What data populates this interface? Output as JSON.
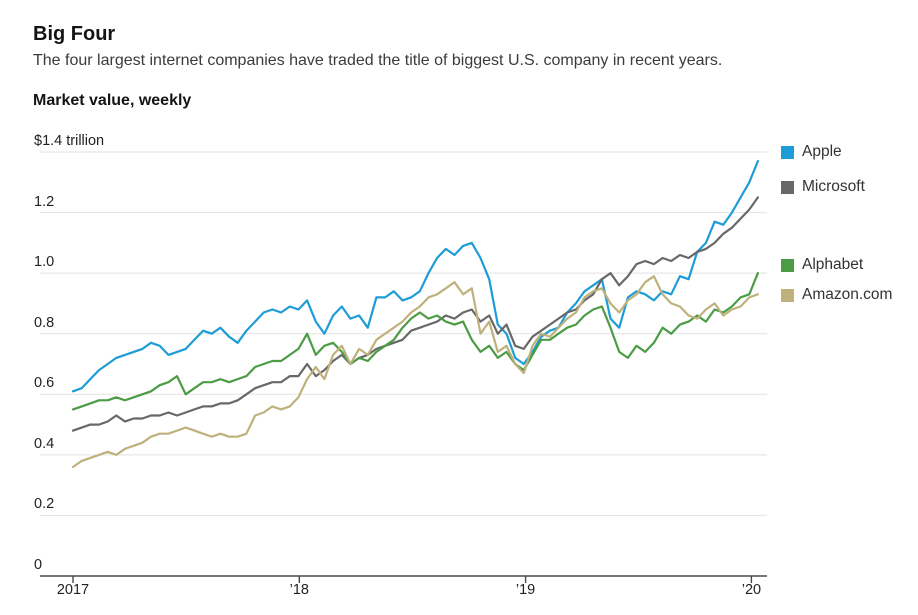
{
  "header": {
    "title": "Big Four",
    "subtitle": "The four largest internet companies have traded the title of biggest U.S. company in recent years."
  },
  "chart_data": {
    "type": "line",
    "title": "Market value, weekly",
    "unit": "trillion USD",
    "grid": true,
    "legend_position": "right",
    "ylim": [
      0,
      1.4
    ],
    "x_start": "2017",
    "x_end": "early 2020",
    "x_step_weeks": 2,
    "x_ticks": [
      {
        "week": 0,
        "label": "2017"
      },
      {
        "week": 52.2,
        "label": "’18"
      },
      {
        "week": 104.4,
        "label": "’19"
      },
      {
        "week": 156.5,
        "label": "’20"
      }
    ],
    "y_ticks": [
      {
        "value": 0,
        "label": "0"
      },
      {
        "value": 0.2,
        "label": "0.2"
      },
      {
        "value": 0.4,
        "label": "0.4"
      },
      {
        "value": 0.6,
        "label": "0.6"
      },
      {
        "value": 0.8,
        "label": "0.8"
      },
      {
        "value": 1.0,
        "label": "1.0"
      },
      {
        "value": 1.2,
        "label": "1.2"
      },
      {
        "value": 1.4,
        "label": "$1.4 trillion"
      }
    ],
    "series": [
      {
        "name": "Apple",
        "color": "#1e9cd7",
        "values": [
          0.61,
          0.62,
          0.65,
          0.68,
          0.7,
          0.72,
          0.73,
          0.74,
          0.75,
          0.77,
          0.76,
          0.73,
          0.74,
          0.75,
          0.78,
          0.81,
          0.8,
          0.82,
          0.79,
          0.77,
          0.81,
          0.84,
          0.87,
          0.88,
          0.87,
          0.89,
          0.88,
          0.91,
          0.84,
          0.8,
          0.86,
          0.89,
          0.85,
          0.86,
          0.82,
          0.92,
          0.92,
          0.94,
          0.91,
          0.92,
          0.94,
          1.0,
          1.05,
          1.08,
          1.06,
          1.09,
          1.1,
          1.05,
          0.98,
          0.83,
          0.8,
          0.72,
          0.7,
          0.74,
          0.79,
          0.81,
          0.82,
          0.87,
          0.9,
          0.94,
          0.96,
          0.98,
          0.85,
          0.82,
          0.92,
          0.94,
          0.93,
          0.91,
          0.94,
          0.93,
          0.99,
          0.98,
          1.07,
          1.1,
          1.17,
          1.16,
          1.2,
          1.25,
          1.3,
          1.37
        ]
      },
      {
        "name": "Microsoft",
        "color": "#686868",
        "values": [
          0.48,
          0.49,
          0.5,
          0.5,
          0.51,
          0.53,
          0.51,
          0.52,
          0.52,
          0.53,
          0.53,
          0.54,
          0.53,
          0.54,
          0.55,
          0.56,
          0.56,
          0.57,
          0.57,
          0.58,
          0.6,
          0.62,
          0.63,
          0.64,
          0.64,
          0.66,
          0.66,
          0.7,
          0.66,
          0.68,
          0.71,
          0.73,
          0.7,
          0.72,
          0.73,
          0.75,
          0.76,
          0.77,
          0.78,
          0.81,
          0.82,
          0.83,
          0.84,
          0.86,
          0.85,
          0.87,
          0.88,
          0.84,
          0.86,
          0.8,
          0.83,
          0.76,
          0.75,
          0.79,
          0.81,
          0.83,
          0.85,
          0.87,
          0.88,
          0.91,
          0.93,
          0.98,
          1.0,
          0.96,
          0.99,
          1.03,
          1.04,
          1.03,
          1.05,
          1.04,
          1.06,
          1.05,
          1.07,
          1.08,
          1.1,
          1.13,
          1.15,
          1.18,
          1.21,
          1.25
        ]
      },
      {
        "name": "Alphabet",
        "color": "#4b9c45",
        "values": [
          0.55,
          0.56,
          0.57,
          0.58,
          0.58,
          0.59,
          0.58,
          0.59,
          0.6,
          0.61,
          0.63,
          0.64,
          0.66,
          0.6,
          0.62,
          0.64,
          0.64,
          0.65,
          0.64,
          0.65,
          0.66,
          0.69,
          0.7,
          0.71,
          0.71,
          0.73,
          0.75,
          0.8,
          0.73,
          0.76,
          0.77,
          0.74,
          0.7,
          0.72,
          0.71,
          0.74,
          0.76,
          0.78,
          0.82,
          0.85,
          0.87,
          0.85,
          0.86,
          0.84,
          0.83,
          0.84,
          0.78,
          0.74,
          0.76,
          0.72,
          0.74,
          0.7,
          0.68,
          0.73,
          0.78,
          0.78,
          0.8,
          0.82,
          0.83,
          0.86,
          0.88,
          0.89,
          0.82,
          0.74,
          0.72,
          0.76,
          0.74,
          0.77,
          0.82,
          0.8,
          0.83,
          0.84,
          0.86,
          0.84,
          0.88,
          0.87,
          0.89,
          0.92,
          0.93,
          1.0
        ]
      },
      {
        "name": "Amazon.com",
        "color": "#bfb17c",
        "values": [
          0.36,
          0.38,
          0.39,
          0.4,
          0.41,
          0.4,
          0.42,
          0.43,
          0.44,
          0.46,
          0.47,
          0.47,
          0.48,
          0.49,
          0.48,
          0.47,
          0.46,
          0.47,
          0.46,
          0.46,
          0.47,
          0.53,
          0.54,
          0.56,
          0.55,
          0.56,
          0.59,
          0.65,
          0.69,
          0.65,
          0.73,
          0.76,
          0.7,
          0.75,
          0.73,
          0.78,
          0.8,
          0.82,
          0.84,
          0.87,
          0.89,
          0.92,
          0.93,
          0.95,
          0.97,
          0.93,
          0.95,
          0.8,
          0.84,
          0.74,
          0.76,
          0.7,
          0.67,
          0.76,
          0.8,
          0.79,
          0.82,
          0.85,
          0.87,
          0.92,
          0.94,
          0.95,
          0.9,
          0.87,
          0.91,
          0.93,
          0.97,
          0.99,
          0.93,
          0.9,
          0.89,
          0.86,
          0.85,
          0.88,
          0.9,
          0.86,
          0.88,
          0.89,
          0.92,
          0.93
        ]
      }
    ]
  }
}
